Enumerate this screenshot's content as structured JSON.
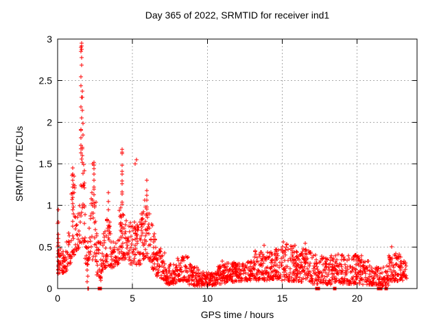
{
  "page": {
    "background": "#ffffff"
  },
  "chart_data": {
    "type": "scatter",
    "title": "Day 365 of 2022, SRMTID for receiver ind1",
    "xlabel": "GPS time / hours",
    "ylabel": "SRMTID / TECUs",
    "series_name": "SRMTID",
    "xlim": [
      0,
      24
    ],
    "ylim": [
      0,
      3
    ],
    "xticks": [
      {
        "v": 0,
        "label": "0"
      },
      {
        "v": 5,
        "label": "5"
      },
      {
        "v": 10,
        "label": "10"
      },
      {
        "v": 15,
        "label": "15"
      },
      {
        "v": 20,
        "label": "20"
      }
    ],
    "yticks": [
      {
        "v": 0,
        "label": "0"
      },
      {
        "v": 0.5,
        "label": "0.5"
      },
      {
        "v": 1,
        "label": "1"
      },
      {
        "v": 1.5,
        "label": "1.5"
      },
      {
        "v": 2,
        "label": "2"
      },
      {
        "v": 2.5,
        "label": "2.5"
      },
      {
        "v": 3,
        "label": "3"
      }
    ],
    "grid": true,
    "legend": "none",
    "marker": "plus",
    "marker_color": "#ff0000",
    "grid_color": "#a8a8a8",
    "border_color": "#000000",
    "seed": 20221365,
    "texture": {
      "bias_exp": 1.6,
      "streak_prob": 0.08,
      "streak_max": 4,
      "t_jitter": 0.012
    },
    "band_segments": [
      [
        0.02,
        0.6,
        0.016,
        0.18,
        0.48,
        0.2,
        0.5
      ],
      [
        0.6,
        0.92,
        0.016,
        0.25,
        0.62,
        0.32,
        0.95
      ],
      [
        0.92,
        1.22,
        0.016,
        0.38,
        1.4,
        0.42,
        1.2
      ],
      [
        1.22,
        1.52,
        0.016,
        0.45,
        1.05,
        0.5,
        1.3
      ],
      [
        1.52,
        1.82,
        0.014,
        0.55,
        2.1,
        0.5,
        1.6
      ],
      [
        1.82,
        2.06,
        0.016,
        0.3,
        1.05,
        0.28,
        0.6
      ],
      [
        2.06,
        2.2,
        0.02,
        0.3,
        0.6,
        0.35,
        0.9
      ],
      [
        2.2,
        2.62,
        0.015,
        0.35,
        1.45,
        0.3,
        1.0
      ],
      [
        2.62,
        2.88,
        0.016,
        0.15,
        0.85,
        0.12,
        0.5
      ],
      [
        2.88,
        3.22,
        0.016,
        0.2,
        0.6,
        0.25,
        0.72
      ],
      [
        3.22,
        3.56,
        0.016,
        0.25,
        0.85,
        0.25,
        0.8
      ],
      [
        3.56,
        4.12,
        0.016,
        0.24,
        0.56,
        0.3,
        0.6
      ],
      [
        4.12,
        4.46,
        0.015,
        0.35,
        1.1,
        0.35,
        0.95
      ],
      [
        4.46,
        5.12,
        0.016,
        0.28,
        0.85,
        0.3,
        0.8
      ],
      [
        5.12,
        5.58,
        0.016,
        0.25,
        0.8,
        0.3,
        0.85
      ],
      [
        5.58,
        5.88,
        0.015,
        0.32,
        0.95,
        0.38,
        1.15
      ],
      [
        5.88,
        6.12,
        0.014,
        0.35,
        1.18,
        0.32,
        0.95
      ],
      [
        6.12,
        6.62,
        0.015,
        0.25,
        0.92,
        0.2,
        0.55
      ],
      [
        6.62,
        7.22,
        0.015,
        0.14,
        0.52,
        0.1,
        0.42
      ],
      [
        7.22,
        8.02,
        0.016,
        0.05,
        0.3,
        0.06,
        0.3
      ],
      [
        8.02,
        8.72,
        0.015,
        0.1,
        0.42,
        0.08,
        0.38
      ],
      [
        8.72,
        9.42,
        0.016,
        0.04,
        0.3,
        0.03,
        0.25
      ],
      [
        9.42,
        10.62,
        0.016,
        0.03,
        0.2,
        0.04,
        0.2
      ],
      [
        10.62,
        11.22,
        0.016,
        0.05,
        0.26,
        0.06,
        0.3
      ],
      [
        11.22,
        11.62,
        0.016,
        0.08,
        0.36,
        0.08,
        0.3
      ],
      [
        11.62,
        13.12,
        0.016,
        0.08,
        0.32,
        0.1,
        0.36
      ],
      [
        13.12,
        14.02,
        0.015,
        0.1,
        0.46,
        0.1,
        0.44
      ],
      [
        14.02,
        14.92,
        0.015,
        0.1,
        0.48,
        0.12,
        0.5
      ],
      [
        14.92,
        16.62,
        0.015,
        0.1,
        0.55,
        0.08,
        0.5
      ],
      [
        16.62,
        18.02,
        0.016,
        0.06,
        0.48,
        0.05,
        0.36
      ],
      [
        18.02,
        19.02,
        0.016,
        0.05,
        0.4,
        0.06,
        0.42
      ],
      [
        19.02,
        20.32,
        0.016,
        0.05,
        0.42,
        0.06,
        0.4
      ],
      [
        20.32,
        21.42,
        0.016,
        0.05,
        0.35,
        0.04,
        0.3
      ],
      [
        21.42,
        22.12,
        0.018,
        0.03,
        0.26,
        0.04,
        0.28
      ],
      [
        22.12,
        23.02,
        0.015,
        0.08,
        0.48,
        0.08,
        0.42
      ],
      [
        23.02,
        23.3,
        0.016,
        0.1,
        0.36,
        0.12,
        0.3
      ]
    ],
    "spike_columns": [
      {
        "t": 0.03,
        "ys": [
          0.95,
          0.8,
          0.78,
          0.65,
          0.6,
          0.55,
          0.52,
          0.5,
          0.45,
          0.42,
          0.38,
          0.33,
          0.28,
          0.22,
          0.18
        ]
      },
      {
        "t": 1.0,
        "ys": [
          1.45,
          1.38,
          1.3,
          1.22,
          1.1,
          1.02
        ]
      },
      {
        "t": 1.08,
        "ys": [
          1.35,
          1.25,
          1.15
        ]
      },
      {
        "t": 1.58,
        "ys": [
          2.95,
          2.92,
          2.9,
          2.88,
          2.85,
          2.78,
          2.69,
          2.55,
          2.44,
          2.3,
          2.18,
          2.05,
          1.9,
          1.81,
          1.72,
          1.63,
          1.56
        ]
      },
      {
        "t": 1.66,
        "ys": [
          2.37,
          2.3,
          2.14,
          1.99,
          1.85,
          1.7,
          1.6,
          1.52
        ]
      },
      {
        "t": 1.98,
        "ys": [
          0.3,
          0.22,
          0.15,
          0.08
        ]
      },
      {
        "t": 2.42,
        "ys": [
          1.52,
          1.48,
          1.44,
          1.38,
          1.3,
          1.22
        ]
      },
      {
        "t": 2.9,
        "ys": [
          0.2,
          0.14,
          0.1
        ]
      },
      {
        "t": 3.4,
        "ys": [
          1.15,
          1.05,
          0.95
        ]
      },
      {
        "t": 4.3,
        "ys": [
          1.67,
          1.64,
          1.62,
          1.48,
          1.41,
          1.38,
          1.29,
          1.26,
          1.16,
          1.14,
          1.04,
          1.01
        ]
      },
      {
        "t": 5.95,
        "ys": [
          1.3,
          1.18,
          1.12,
          1.06,
          0.98,
          0.9
        ]
      }
    ],
    "extra_points": [
      [
        5.25,
        1.55
      ],
      [
        5.18,
        1.5
      ],
      [
        2.32,
        1.5
      ],
      [
        13.78,
        0.52
      ],
      [
        15.06,
        0.56
      ],
      [
        16.52,
        0.54
      ],
      [
        22.32,
        0.5
      ],
      [
        11.0,
        0.33
      ]
    ],
    "zero_points": [
      2.02,
      2.06
    ],
    "zero_squares": [
      2.78,
      2.85,
      17.3,
      17.4,
      18.5,
      21.44,
      21.56,
      21.92
    ]
  }
}
